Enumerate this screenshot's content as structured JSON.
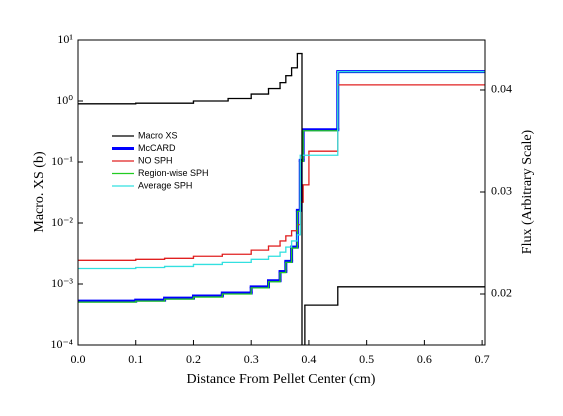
{
  "chart_data": {
    "type": "step",
    "xlabel": "Distance From Pellet Center (cm)",
    "ylabel": "Macro. XS (b)",
    "y2label": "Flux (Arbitrary Scale)",
    "xlim": [
      0,
      0.705
    ],
    "xticks": [
      {
        "value": 0,
        "label": "0.0"
      },
      0.1,
      0.2,
      0.3,
      0.4,
      0.5,
      0.6,
      0.7
    ],
    "ylim": [
      0.0001,
      10
    ],
    "yscale": "log",
    "yticks": [
      {
        "value": 0.0001,
        "label": "10⁻⁴"
      },
      {
        "value": 0.001,
        "label": "10⁻³"
      },
      {
        "value": 0.01,
        "label": "10⁻²"
      },
      {
        "value": 0.1,
        "label": "10⁻¹"
      },
      {
        "value": 1,
        "label": "10⁰"
      },
      {
        "value": 10,
        "label": "10¹"
      }
    ],
    "y2lim": [
      0.015,
      0.0449
    ],
    "y2ticks": [
      0.02,
      0.03,
      0.04
    ],
    "series": [
      {
        "name": "Macro XS",
        "color": "#000000",
        "width": 1.3,
        "edges": [
          0,
          0.1,
          0.2,
          0.26,
          0.3,
          0.33,
          0.35,
          0.36,
          0.37,
          0.38,
          0.388,
          0.393,
          0.45,
          0.705
        ],
        "values": [
          0.9,
          0.92,
          1.0,
          1.1,
          1.3,
          1.6,
          2.0,
          2.6,
          3.5,
          6.0,
          5e-05,
          0.00045,
          0.0009
        ]
      },
      {
        "name": "McCARD",
        "color": "#0000ff",
        "width": 3,
        "axis": "y2",
        "edges": [
          0,
          0.1,
          0.15,
          0.2,
          0.25,
          0.3,
          0.33,
          0.35,
          0.36,
          0.37,
          0.38,
          0.385,
          0.39,
          0.45,
          0.705
        ],
        "values": [
          0.0193,
          0.0194,
          0.0196,
          0.0198,
          0.0201,
          0.0207,
          0.0213,
          0.0222,
          0.0232,
          0.0246,
          0.0282,
          0.0331,
          0.0361,
          0.0418
        ]
      },
      {
        "name": "NO SPH",
        "color": "#e02020",
        "width": 1.3,
        "axis": "y2",
        "edges": [
          0,
          0.1,
          0.15,
          0.2,
          0.25,
          0.3,
          0.33,
          0.35,
          0.36,
          0.37,
          0.38,
          0.385,
          0.39,
          0.4,
          0.45,
          0.705
        ],
        "values": [
          0.0233,
          0.0234,
          0.0235,
          0.0237,
          0.0239,
          0.0243,
          0.0247,
          0.0252,
          0.0257,
          0.0262,
          0.0268,
          0.029,
          0.0307,
          0.034,
          0.0405
        ]
      },
      {
        "name": "Region-wise SPH",
        "color": "#22cc22",
        "width": 1.3,
        "axis": "y2",
        "edges": [
          0,
          0.1,
          0.15,
          0.2,
          0.25,
          0.3,
          0.33,
          0.35,
          0.36,
          0.37,
          0.38,
          0.385,
          0.39,
          0.45,
          0.705
        ],
        "values": [
          0.0192,
          0.0193,
          0.0195,
          0.0197,
          0.02,
          0.0206,
          0.0212,
          0.0221,
          0.0231,
          0.0245,
          0.0281,
          0.033,
          0.036,
          0.0418
        ]
      },
      {
        "name": "Average SPH",
        "color": "#33e0e0",
        "width": 1.3,
        "axis": "y2",
        "edges": [
          0,
          0.1,
          0.15,
          0.2,
          0.25,
          0.3,
          0.33,
          0.35,
          0.36,
          0.37,
          0.38,
          0.385,
          0.39,
          0.45,
          0.705
        ],
        "values": [
          0.0225,
          0.0226,
          0.0227,
          0.0229,
          0.0231,
          0.0234,
          0.0237,
          0.0241,
          0.0246,
          0.0252,
          0.0258,
          0.0336,
          0.0336,
          0.0418
        ]
      }
    ]
  }
}
